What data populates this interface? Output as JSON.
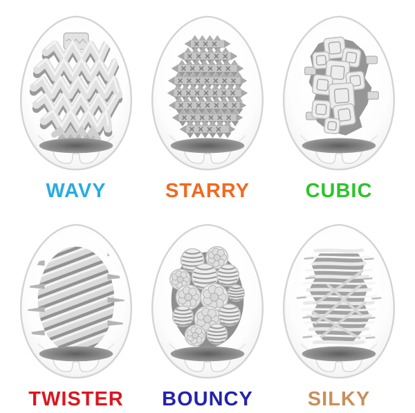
{
  "page": {
    "background": "#ffffff"
  },
  "products": [
    {
      "label": "WAVY",
      "label_color": "#29abe2",
      "texture": "wavy"
    },
    {
      "label": "STARRY",
      "label_color": "#f2691e",
      "texture": "starry"
    },
    {
      "label": "CUBIC",
      "label_color": "#2cc42a",
      "texture": "cubic"
    },
    {
      "label": "TWISTER",
      "label_color": "#da1720",
      "texture": "twister"
    },
    {
      "label": "BOUNCY",
      "label_color": "#2322af",
      "texture": "bouncy"
    },
    {
      "label": "SILKY",
      "label_color": "#ca8f5b",
      "texture": "silky"
    }
  ],
  "illustration": {
    "shell_stroke": "#d4d4d4",
    "disc_dark": "#5f5f5f",
    "disc_mid": "#8f8f8f",
    "disc_light": "#ababab",
    "texture_grays": [
      "#f4f4f4",
      "#e1e1e1",
      "#c6c6c6",
      "#9a9a9a",
      "#7f7f7f"
    ]
  }
}
